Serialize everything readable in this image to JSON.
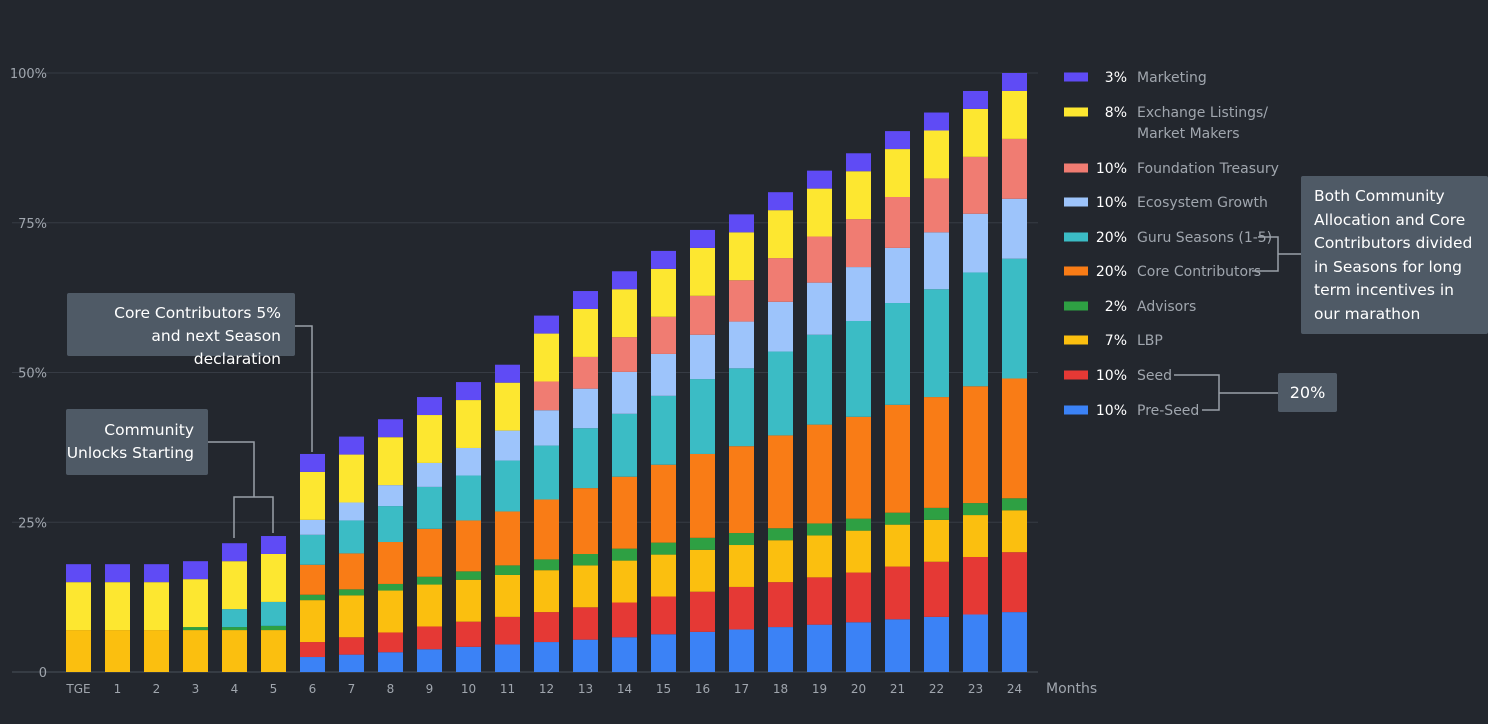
{
  "chart_data": {
    "type": "bar",
    "stacked": true,
    "categories": [
      "TGE",
      "1",
      "2",
      "3",
      "4",
      "5",
      "6",
      "7",
      "8",
      "9",
      "10",
      "11",
      "12",
      "13",
      "14",
      "15",
      "16",
      "17",
      "18",
      "19",
      "20",
      "21",
      "22",
      "23",
      "24"
    ],
    "xlabel": "Months",
    "ylabel": "",
    "ylim": [
      0,
      100
    ],
    "yticks": [
      {
        "value": 0,
        "label": "0"
      },
      {
        "value": 25,
        "label": "25%"
      },
      {
        "value": 50,
        "label": "50%"
      },
      {
        "value": 75,
        "label": "75%"
      },
      {
        "value": 100,
        "label": "100%"
      }
    ],
    "grid": true,
    "legend_position": "right",
    "series": [
      {
        "name": "Pre-Seed",
        "pct": "10%",
        "color": "#3b82f6",
        "values": [
          0,
          0,
          0,
          0,
          0,
          0,
          2.5,
          2.9,
          3.3,
          3.8,
          4.2,
          4.6,
          5.0,
          5.4,
          5.8,
          6.3,
          6.7,
          7.1,
          7.5,
          7.9,
          8.3,
          8.8,
          9.2,
          9.6,
          10
        ]
      },
      {
        "name": "Seed",
        "pct": "10%",
        "color": "#e53935",
        "values": [
          0,
          0,
          0,
          0,
          0,
          0,
          2.5,
          2.9,
          3.3,
          3.8,
          4.2,
          4.6,
          5.0,
          5.4,
          5.8,
          6.3,
          6.7,
          7.1,
          7.5,
          7.9,
          8.3,
          8.8,
          9.2,
          9.6,
          10
        ]
      },
      {
        "name": "LBP",
        "pct": "7%",
        "color": "#fbbf0f",
        "values": [
          7,
          7,
          7,
          7,
          7,
          7,
          7,
          7,
          7,
          7,
          7,
          7,
          7,
          7,
          7,
          7,
          7,
          7,
          7,
          7,
          7,
          7,
          7,
          7,
          7
        ]
      },
      {
        "name": "Advisors",
        "pct": "2%",
        "color": "#2ea043",
        "values": [
          0,
          0,
          0,
          0.5,
          0.5,
          0.7,
          0.9,
          1.0,
          1.1,
          1.3,
          1.4,
          1.6,
          1.8,
          1.9,
          2.0,
          2.0,
          2.0,
          2.0,
          2.0,
          2.0,
          2.0,
          2.0,
          2.0,
          2.0,
          2.0
        ]
      },
      {
        "name": "Core Contributors",
        "pct": "20%",
        "color": "#f97c16",
        "values": [
          0,
          0,
          0,
          0,
          0,
          0,
          5,
          6,
          7,
          8,
          8.5,
          9,
          10,
          11,
          12,
          13,
          14,
          14.5,
          15.5,
          16.5,
          17,
          18,
          18.5,
          19.5,
          20
        ]
      },
      {
        "name": "Guru Seasons (1-5)",
        "pct": "20%",
        "color": "#3bbcc5",
        "values": [
          0,
          0,
          0,
          0,
          3,
          4,
          5,
          5.5,
          6,
          7,
          7.5,
          8.5,
          9,
          10,
          10.5,
          11.5,
          12.5,
          13,
          14,
          15,
          16,
          17,
          18,
          19,
          20
        ]
      },
      {
        "name": "Ecosystem Growth",
        "pct": "10%",
        "color": "#9dc4fb",
        "values": [
          0,
          0,
          0,
          0,
          0,
          0,
          2.5,
          3.0,
          3.5,
          4.0,
          4.6,
          5.0,
          5.9,
          6.6,
          7.0,
          7.0,
          7.4,
          7.8,
          8.3,
          8.7,
          9.0,
          9.2,
          9.5,
          9.8,
          10
        ]
      },
      {
        "name": "Foundation Treasury",
        "pct": "10%",
        "color": "#f07c72",
        "values": [
          0,
          0,
          0,
          0,
          0,
          0,
          0,
          0,
          0,
          0,
          0,
          0,
          4.8,
          5.3,
          5.8,
          6.2,
          6.5,
          6.9,
          7.3,
          7.7,
          8.0,
          8.5,
          9.0,
          9.5,
          10
        ]
      },
      {
        "name": "Exchange Listings/\nMarket Makers",
        "pct": "8%",
        "color": "#fde730",
        "values": [
          8,
          8,
          8,
          8,
          8,
          8,
          8,
          8,
          8,
          8,
          8,
          8,
          8,
          8,
          8,
          8,
          8,
          8,
          8,
          8,
          8,
          8,
          8,
          8,
          8
        ]
      },
      {
        "name": "Marketing",
        "pct": "3%",
        "color": "#5f4bf5",
        "values": [
          3,
          3,
          3,
          3,
          3,
          3,
          3,
          3,
          3,
          3,
          3,
          3,
          3,
          3,
          3,
          3,
          3,
          3,
          3,
          3,
          3,
          3,
          3,
          3,
          3
        ]
      }
    ]
  },
  "annotations": {
    "core_contributors": "Core Contributors 5%\nand next Season declaration",
    "community": "Community\nUnlocks Starting",
    "seasons": "Both Community Allocation and Core Contributors divided in Seasons for long term incentives in our marathon",
    "seed_total": "20%"
  },
  "colors": {
    "background": "#23272e",
    "grid": "#363b44",
    "tick_text": "#a0a6ae",
    "legend_text": "#a0a6ae",
    "legend_pct": "#ffffff",
    "callout_bg": "#4f5a66",
    "connector": "#9aa0a8"
  }
}
